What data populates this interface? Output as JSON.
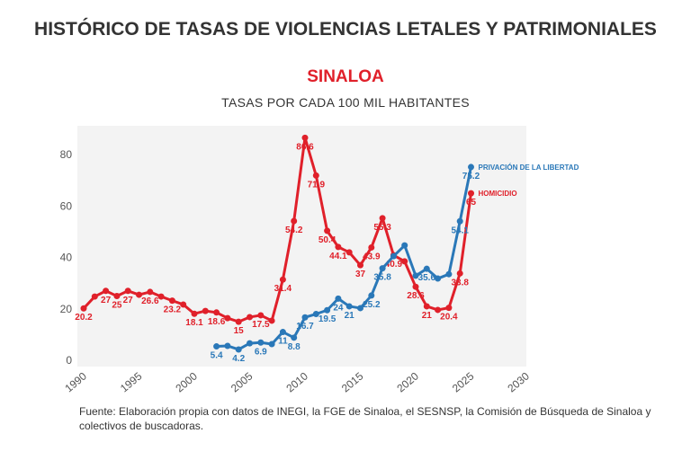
{
  "title": "HISTÓRICO DE TASAS DE VIOLENCIAS LETALES Y PATRIMONIALES",
  "subtitle": "SINALOA",
  "units": "TASAS POR CADA 100 MIL HABITANTES",
  "source": "Fuente: Elaboración propia con datos de INEGI, la FGE de Sinaloa, el SESNSP, la Comisión de Búsqueda de Sinaloa y colectivos de buscadoras.",
  "chart_data": {
    "type": "line",
    "xlim": [
      1990,
      2030
    ],
    "ylim": [
      0,
      87
    ],
    "xticks": [
      "1990",
      "1995",
      "2000",
      "2005",
      "2010",
      "2015",
      "2020",
      "2025",
      "2030"
    ],
    "yticks": [
      "0",
      "20",
      "40",
      "60",
      "80"
    ],
    "grid": false,
    "legend": "inline-right",
    "series": [
      {
        "name": "HOMICIDIO",
        "color": "#e0202a",
        "x": [
          1990,
          1991,
          1992,
          1993,
          1994,
          1995,
          1996,
          1997,
          1998,
          1999,
          2000,
          2001,
          2002,
          2003,
          2004,
          2005,
          2006,
          2007,
          2008,
          2009,
          2010,
          2011,
          2012,
          2013,
          2014,
          2015,
          2016,
          2017,
          2018,
          2019,
          2020,
          2021,
          2022,
          2023,
          2024,
          2025
        ],
        "values": [
          20.2,
          24.8,
          27,
          25,
          27,
          25.5,
          26.6,
          24.8,
          23.2,
          21.7,
          18.1,
          19.2,
          18.6,
          16.4,
          15,
          16.8,
          17.5,
          15.4,
          31.4,
          54.2,
          86.6,
          71.9,
          50.4,
          44.1,
          42,
          37,
          43.9,
          55.3,
          40.9,
          38.5,
          28.6,
          21,
          19.6,
          20.4,
          33.8,
          65
        ],
        "labels": [
          "20.2",
          null,
          "27",
          "25",
          "27",
          null,
          "26.6",
          null,
          "23.2",
          null,
          "18.1",
          null,
          "18.6",
          null,
          "15",
          null,
          "17.5",
          null,
          "31.4",
          "54.2",
          "86.6",
          "71.9",
          "50.4",
          "44.1",
          null,
          "37",
          "43.9",
          "55.3",
          "40.9",
          null,
          "28.6",
          "21",
          null,
          "20.4",
          "33.8",
          "65"
        ]
      },
      {
        "name": "PRIVACIÓN DE LA LIBERTAD",
        "color": "#2a78b8",
        "x": [
          2002,
          2003,
          2004,
          2005,
          2006,
          2007,
          2008,
          2009,
          2010,
          2011,
          2012,
          2013,
          2014,
          2015,
          2016,
          2017,
          2018,
          2019,
          2020,
          2021,
          2022,
          2023,
          2024,
          2025
        ],
        "values": [
          5.4,
          5.6,
          4.2,
          6.6,
          6.9,
          6.3,
          11,
          8.8,
          16.7,
          18,
          19.5,
          24,
          21,
          20.3,
          25.2,
          35.8,
          40.5,
          44.7,
          32.9,
          35.6,
          31.8,
          33.5,
          54.1,
          75.2
        ],
        "labels": [
          "5.4",
          null,
          "4.2",
          null,
          "6.9",
          null,
          "11",
          "8.8",
          "16.7",
          null,
          "19.5",
          "24",
          "21",
          null,
          "25.2",
          "35.8",
          null,
          null,
          null,
          "35.6",
          null,
          null,
          "54.1",
          "75.2"
        ]
      }
    ]
  }
}
